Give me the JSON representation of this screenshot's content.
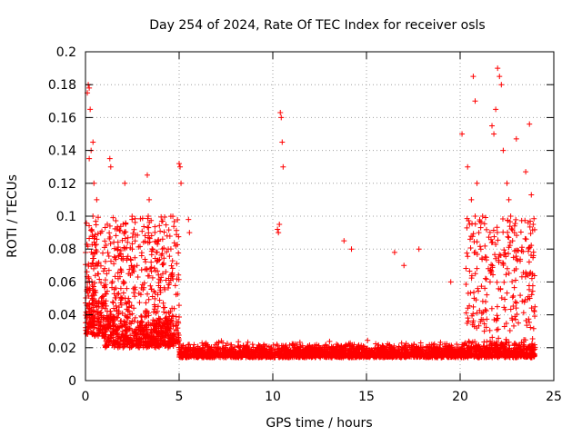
{
  "chart_data": {
    "type": "scatter",
    "title": "Day 254 of 2024, Rate Of TEC Index for receiver osls",
    "xlabel": "GPS time / hours",
    "ylabel": "ROTI / TECUs",
    "xlim": [
      0,
      25
    ],
    "ylim": [
      0,
      0.2
    ],
    "xticks": [
      0,
      5,
      10,
      15,
      20,
      25
    ],
    "yticks": [
      0,
      0.02,
      0.04,
      0.06,
      0.08,
      0.1,
      0.12,
      0.14,
      0.16,
      0.18,
      0.2
    ],
    "xtick_labels": [
      "0",
      "5",
      "10",
      "15",
      "20",
      "25"
    ],
    "ytick_labels": [
      "0",
      "0.02",
      "0.04",
      "0.06",
      "0.08",
      "0.1",
      "0.12",
      "0.14",
      "0.16",
      "0.18",
      "0.2"
    ],
    "grid": true,
    "marker": "plus",
    "color": "#ff0000",
    "data_x_range": [
      0,
      24
    ],
    "series": [
      {
        "x": [
          0.1,
          0.15,
          0.2,
          0.25,
          0.3,
          0.2,
          0.4,
          0.45,
          0.6,
          1.3,
          1.35,
          2.1,
          3.3,
          3.4,
          3.35,
          5.0,
          5.05,
          5.1,
          5.5,
          5.55,
          10.4,
          10.45,
          10.5,
          10.35,
          10.3,
          10.25,
          10.55,
          13.8,
          14.2,
          16.5,
          17.0,
          17.8,
          19.5,
          20.1,
          20.4,
          20.6,
          20.7,
          20.8,
          20.9,
          21.0,
          21.2,
          21.4,
          21.6,
          21.7,
          21.8,
          21.9,
          22.0,
          22.1,
          22.2,
          22.3,
          22.5,
          22.6,
          22.7,
          22.8,
          22.9,
          23.0,
          23.5,
          23.7,
          23.8,
          23.9,
          23.85
        ],
        "y": [
          0.175,
          0.18,
          0.178,
          0.165,
          0.14,
          0.135,
          0.145,
          0.12,
          0.11,
          0.135,
          0.13,
          0.12,
          0.125,
          0.11,
          0.1,
          0.132,
          0.13,
          0.12,
          0.098,
          0.09,
          0.163,
          0.16,
          0.145,
          0.095,
          0.09,
          0.092,
          0.13,
          0.085,
          0.08,
          0.078,
          0.07,
          0.08,
          0.06,
          0.15,
          0.13,
          0.11,
          0.185,
          0.17,
          0.12,
          0.09,
          0.1,
          0.075,
          0.06,
          0.155,
          0.15,
          0.165,
          0.19,
          0.185,
          0.18,
          0.14,
          0.12,
          0.11,
          0.1,
          0.085,
          0.09,
          0.147,
          0.127,
          0.156,
          0.113,
          0.095,
          0.065
        ]
      }
    ]
  }
}
